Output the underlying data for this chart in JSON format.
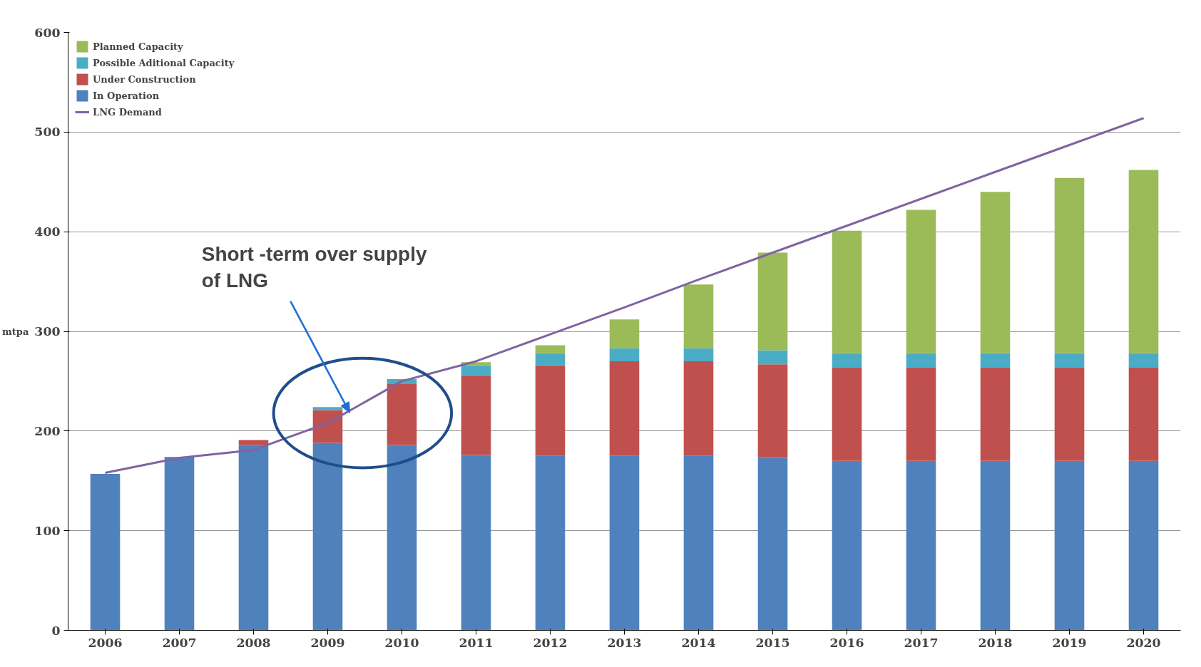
{
  "chart_data": {
    "type": "bar",
    "stacked": true,
    "ylabel": "mtpa",
    "categories": [
      "2006",
      "2007",
      "2008",
      "2009",
      "2010",
      "2011",
      "2012",
      "2013",
      "2014",
      "2015",
      "2016",
      "2017",
      "2018",
      "2019",
      "2020"
    ],
    "series": [
      {
        "name": "In Operation",
        "color": "#4f81bd",
        "values": [
          157,
          174,
          186,
          188,
          186,
          176,
          175,
          175,
          175,
          173,
          170,
          170,
          170,
          170,
          170
        ]
      },
      {
        "name": "Under Construction",
        "color": "#c0504d",
        "values": [
          0,
          0,
          5,
          33,
          61,
          80,
          91,
          95,
          95,
          94,
          94,
          94,
          94,
          94,
          94
        ]
      },
      {
        "name": "Possible Aditional Capacity",
        "color": "#4bacc6",
        "values": [
          0,
          0,
          0,
          3,
          5,
          10,
          12,
          13,
          13,
          14,
          14,
          14,
          14,
          14,
          14
        ]
      },
      {
        "name": "Planned Capacity",
        "color": "#9bbb59",
        "values": [
          0,
          0,
          0,
          0,
          0,
          3,
          8,
          29,
          64,
          98,
          123,
          144,
          162,
          176,
          184
        ]
      },
      {
        "name": "LNG Demand",
        "type": "line",
        "color": "#8064a2",
        "values": [
          158,
          173,
          181,
          208,
          250,
          270,
          297,
          324,
          352,
          379,
          406,
          433,
          460,
          487,
          514
        ]
      }
    ],
    "ylim": [
      0,
      600
    ],
    "yticks": [
      0,
      100,
      200,
      300,
      400,
      500,
      600
    ],
    "grid": "y",
    "legend": "top left",
    "annotations": [
      "Short -term over supply\nof LNG"
    ]
  }
}
